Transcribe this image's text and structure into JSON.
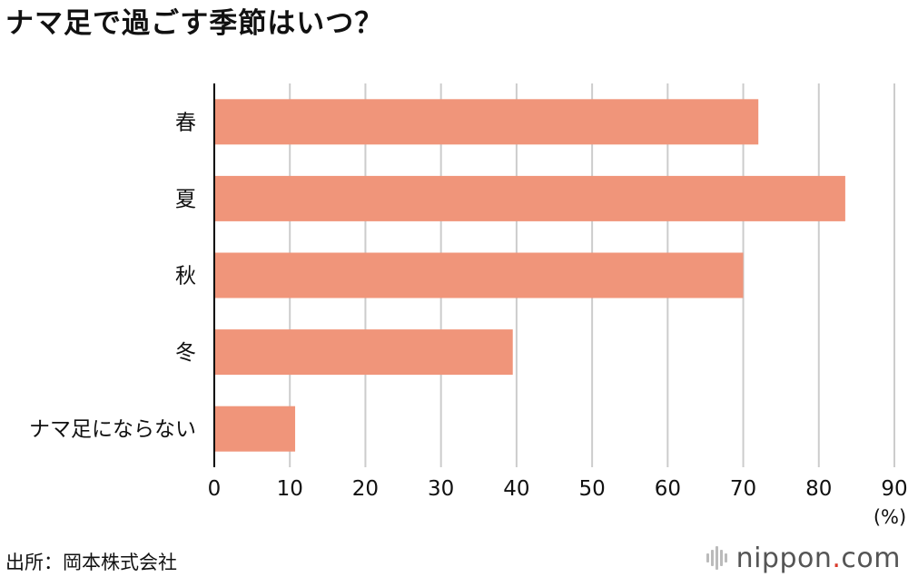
{
  "title": "ナマ足で過ごす季節はいつ？",
  "source": "出所：岡本株式会社",
  "logo": {
    "name": "nippon",
    "dot": ".",
    "tld": "com"
  },
  "colors": {
    "bar": "#f0957a",
    "grid": "#cccccc",
    "axis": "#000000"
  },
  "chart_data": {
    "type": "bar",
    "orientation": "horizontal",
    "categories": [
      "春",
      "夏",
      "秋",
      "冬",
      "ナマ足にならない"
    ],
    "values": [
      72,
      83.5,
      70,
      39.5,
      10.7
    ],
    "xticks": [
      "0",
      "10",
      "20",
      "30",
      "40",
      "50",
      "60",
      "70",
      "80",
      "90"
    ],
    "xlim": [
      0,
      90
    ],
    "unit_label": "(%)",
    "grid": true
  }
}
